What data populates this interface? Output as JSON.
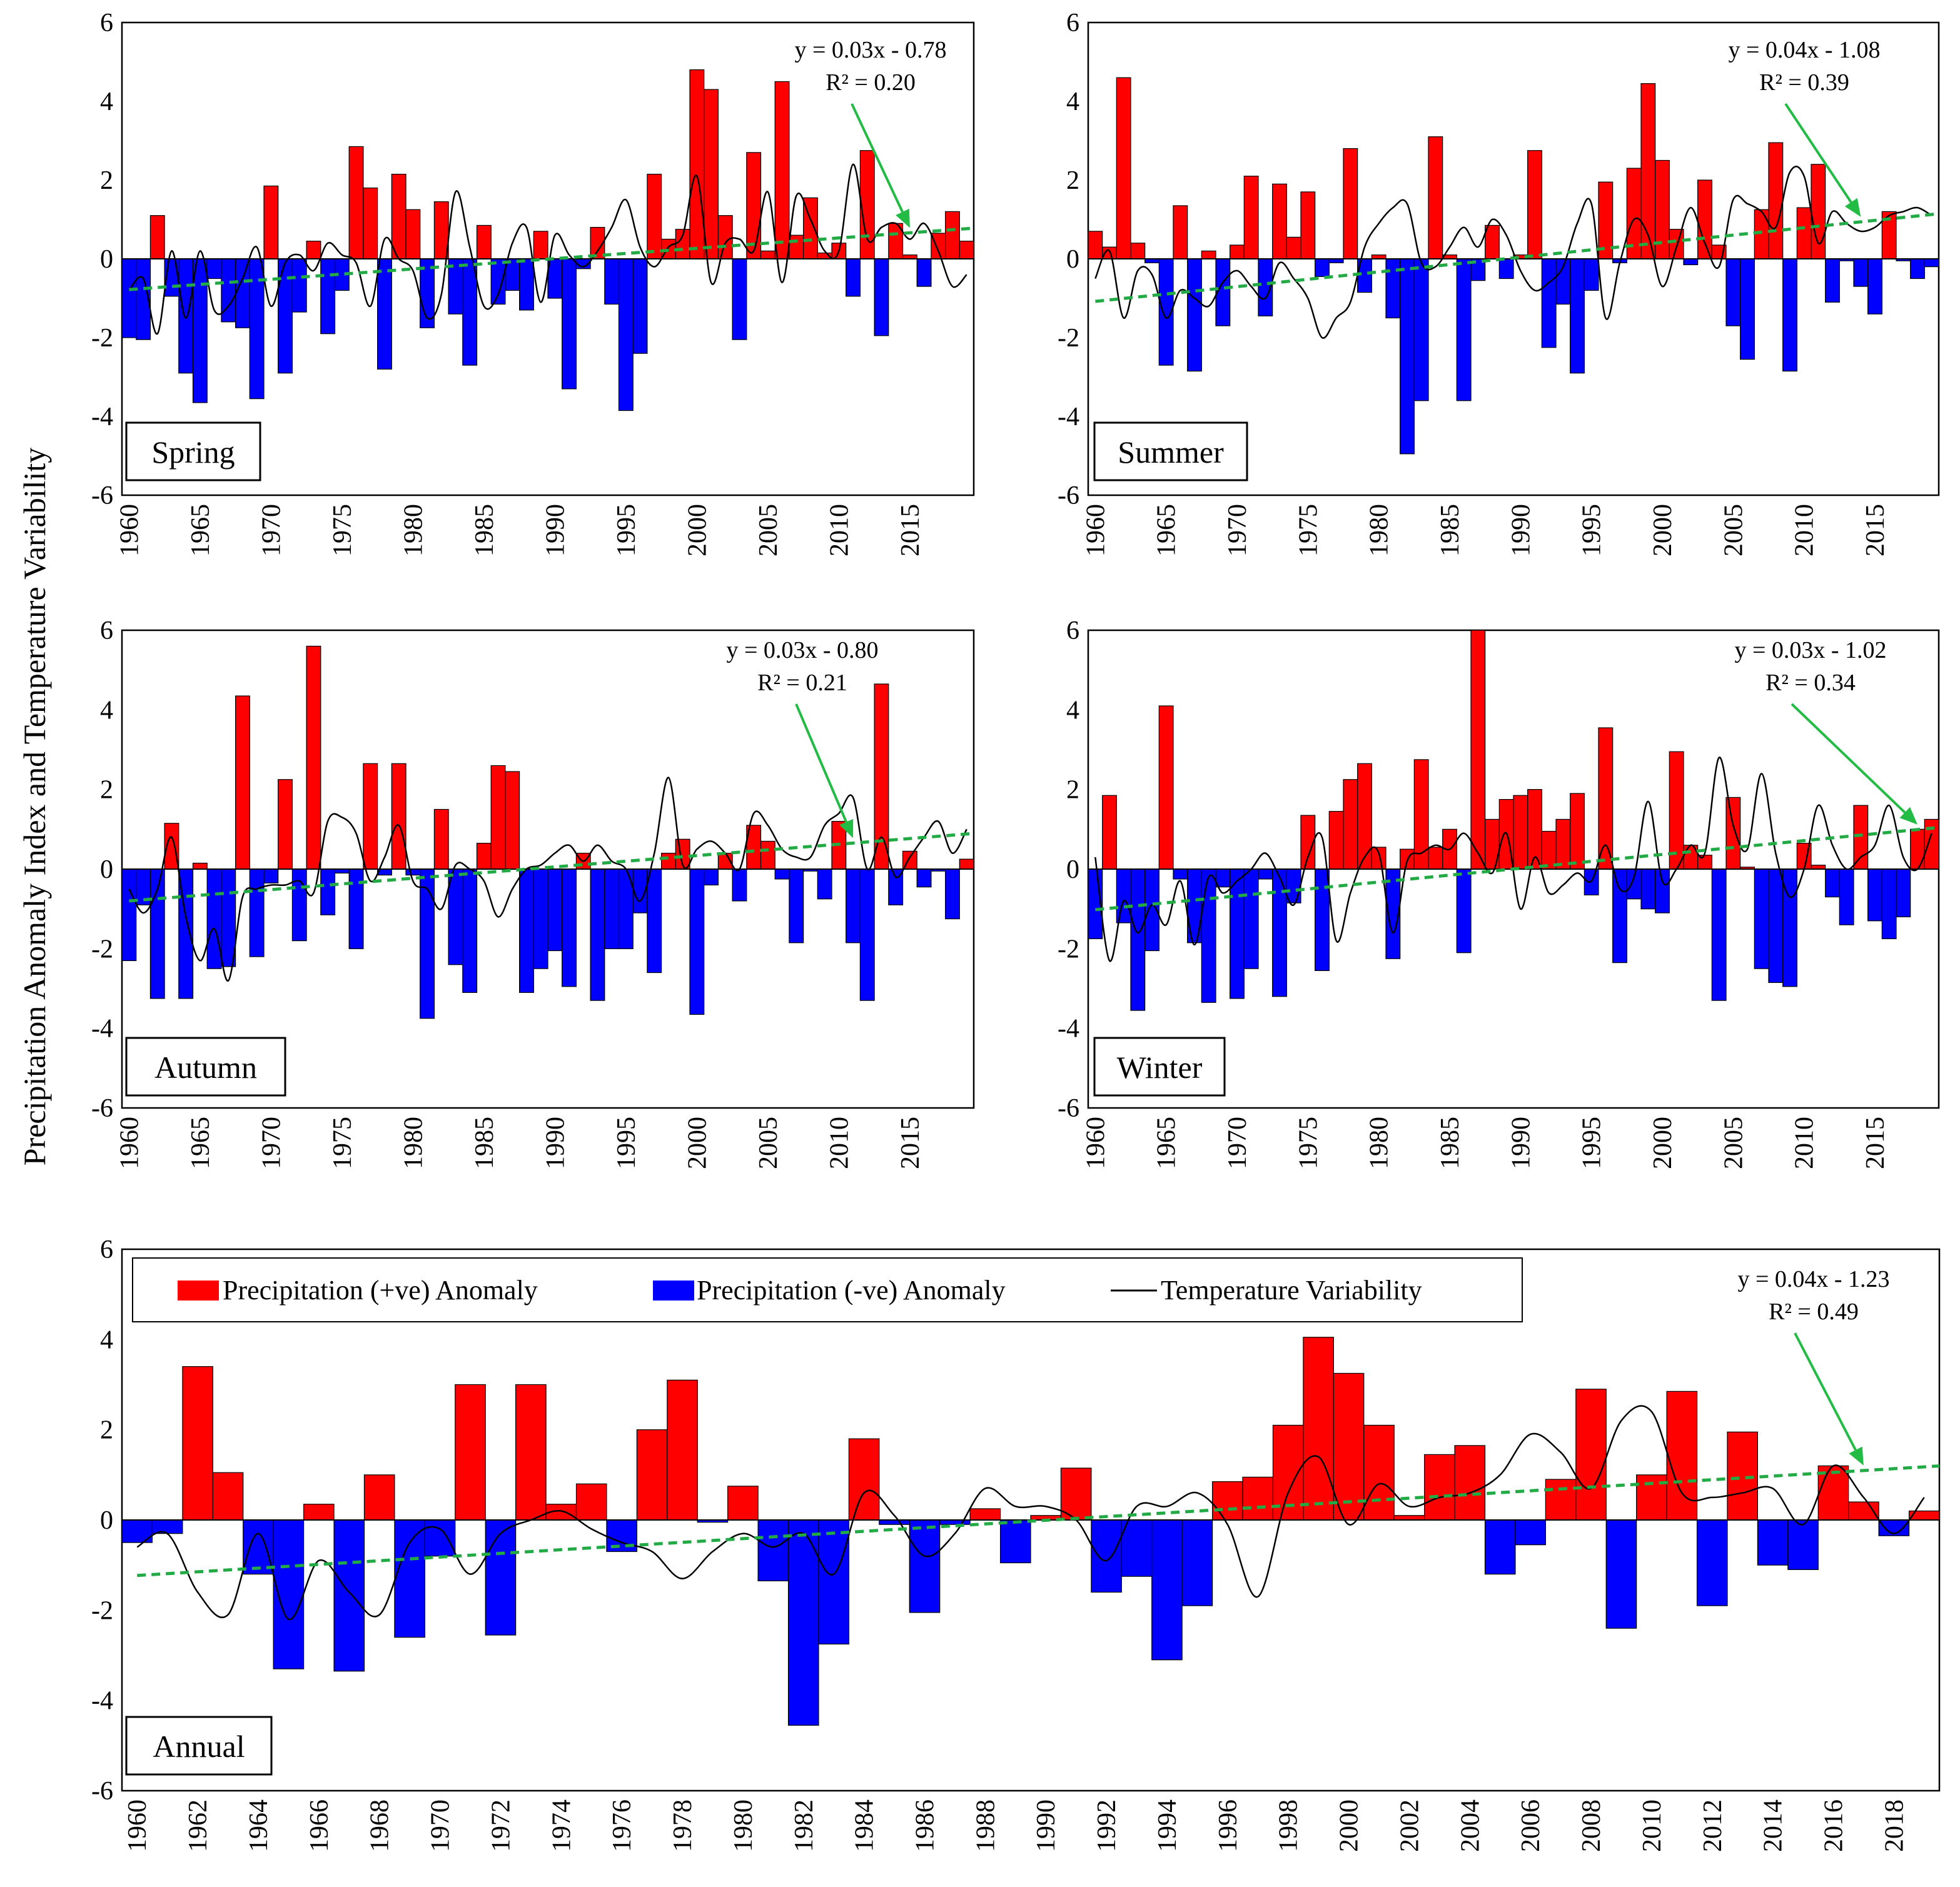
{
  "figure": {
    "ylabel": "Precipitation Anomaly Index and Temperature Variability",
    "colors": {
      "positive": "#ff0000",
      "negative": "#0000ff",
      "trend": "#22aa44",
      "arrow": "#22bb44",
      "temperature": "#000000"
    },
    "legend": {
      "pos_label": "Precipitation (+ve) Anomaly",
      "neg_label": "Precipitation (-ve) Anomaly",
      "temp_label": "Temperature Variability"
    }
  },
  "chart_data": [
    {
      "id": "spring",
      "type": "bar",
      "label": "Spring",
      "equation": "y = 0.03x - 0.78",
      "r2": "R² = 0.20",
      "ylim": [
        -6,
        6
      ],
      "yticks": [
        -6,
        -4,
        -2,
        0,
        2,
        4,
        6
      ],
      "xlim": [
        1959.5,
        2019.5
      ],
      "xticks": [
        "1960",
        "1965",
        "1970",
        "1975",
        "1980",
        "1985",
        "1990",
        "1995",
        "2000",
        "2005",
        "2010",
        "2015"
      ],
      "trend": {
        "slope": 0.0262,
        "start": -0.78
      },
      "arrow_year": 2015,
      "x": [
        1960,
        1961,
        1962,
        1963,
        1964,
        1965,
        1966,
        1967,
        1968,
        1969,
        1970,
        1971,
        1972,
        1973,
        1974,
        1975,
        1976,
        1977,
        1978,
        1979,
        1980,
        1981,
        1982,
        1983,
        1984,
        1985,
        1986,
        1987,
        1988,
        1989,
        1990,
        1991,
        1992,
        1993,
        1994,
        1995,
        1996,
        1997,
        1998,
        1999,
        2000,
        2001,
        2002,
        2003,
        2004,
        2005,
        2006,
        2007,
        2008,
        2009,
        2010,
        2011,
        2012,
        2013,
        2014,
        2015,
        2016,
        2017,
        2018,
        2019
      ],
      "values": [
        -2.0,
        -2.05,
        1.1,
        -0.95,
        -2.9,
        -3.65,
        -0.5,
        -1.6,
        -1.75,
        -3.55,
        1.85,
        -2.9,
        -1.35,
        0.45,
        -1.9,
        -0.8,
        2.85,
        1.8,
        -2.8,
        2.15,
        1.25,
        -1.75,
        1.45,
        -1.4,
        -2.7,
        0.85,
        -1.15,
        -0.8,
        -1.3,
        0.7,
        -1.0,
        -3.3,
        -0.25,
        0.8,
        -1.15,
        -3.85,
        -2.4,
        2.15,
        0.5,
        0.75,
        4.8,
        4.3,
        1.1,
        -2.05,
        2.7,
        0.2,
        4.5,
        0.6,
        1.55,
        0.15,
        0.4,
        -0.95,
        2.75,
        -1.95,
        0.9,
        0.1,
        -0.7,
        0.65,
        1.2,
        0.45
      ],
      "temperature": [
        -0.8,
        -0.5,
        -1.9,
        0.2,
        -1.5,
        0.2,
        -1.3,
        -1.2,
        -0.5,
        0.3,
        -1.2,
        -0.1,
        0.1,
        -0.3,
        0.4,
        0.1,
        -0.1,
        -1.2,
        0.5,
        0.0,
        -0.3,
        -1.5,
        -0.9,
        1.7,
        0.3,
        -1.2,
        -0.9,
        0.4,
        0.8,
        -1.1,
        0.6,
        0.1,
        -0.2,
        0.2,
        0.8,
        1.5,
        0.3,
        -0.2,
        0.3,
        0.6,
        2.1,
        -0.6,
        0.4,
        0.5,
        0.2,
        1.7,
        -0.6,
        1.6,
        1.0,
        0.2,
        0.2,
        2.4,
        0.5,
        0.8,
        0.9,
        0.5,
        0.9,
        0.2,
        -0.7,
        -0.4
      ]
    },
    {
      "id": "summer",
      "type": "bar",
      "label": "Summer",
      "equation": "y = 0.04x - 1.08",
      "r2": "R² = 0.39",
      "ylim": [
        -6,
        6
      ],
      "yticks": [
        -6,
        -4,
        -2,
        0,
        2,
        4,
        6
      ],
      "xlim": [
        1959.5,
        2019.5
      ],
      "xticks": [
        "1960",
        "1965",
        "1970",
        "1975",
        "1980",
        "1985",
        "1990",
        "1995",
        "2000",
        "2005",
        "2010",
        "2015"
      ],
      "trend": {
        "slope": 0.0374,
        "start": -1.08
      },
      "arrow_year": 2014,
      "x": [
        1960,
        1961,
        1962,
        1963,
        1964,
        1965,
        1966,
        1967,
        1968,
        1969,
        1970,
        1971,
        1972,
        1973,
        1974,
        1975,
        1976,
        1977,
        1978,
        1979,
        1980,
        1981,
        1982,
        1983,
        1984,
        1985,
        1986,
        1987,
        1988,
        1989,
        1990,
        1991,
        1992,
        1993,
        1994,
        1995,
        1996,
        1997,
        1998,
        1999,
        2000,
        2001,
        2002,
        2003,
        2004,
        2005,
        2006,
        2007,
        2008,
        2009,
        2010,
        2011,
        2012,
        2013,
        2014,
        2015,
        2016,
        2017,
        2018,
        2019
      ],
      "values": [
        0.7,
        0.3,
        4.6,
        0.4,
        -0.1,
        -2.7,
        1.35,
        -2.85,
        0.2,
        -1.7,
        0.35,
        2.1,
        -1.45,
        1.9,
        0.55,
        1.7,
        -0.45,
        -0.1,
        2.8,
        -0.85,
        0.1,
        -1.5,
        -4.95,
        -3.6,
        3.1,
        0.1,
        -3.6,
        -0.55,
        0.85,
        -0.5,
        0.1,
        2.75,
        -2.25,
        -1.15,
        -2.9,
        -0.8,
        1.95,
        -0.1,
        2.3,
        4.45,
        2.5,
        0.75,
        -0.15,
        2.0,
        0.35,
        -1.7,
        -2.55,
        1.25,
        2.95,
        -2.85,
        1.3,
        2.4,
        -1.1,
        -0.05,
        -0.7,
        -1.4,
        1.2,
        -0.05,
        -0.5,
        -0.2
      ],
      "temperature": [
        -0.5,
        0.2,
        -1.5,
        -0.3,
        -0.4,
        -1.5,
        -0.8,
        -1.0,
        -1.2,
        -0.6,
        -0.3,
        -0.7,
        -1.0,
        -0.1,
        -0.5,
        -1.0,
        -2.0,
        -1.5,
        -1.1,
        0.3,
        0.9,
        1.3,
        1.4,
        -0.1,
        -0.2,
        0.3,
        0.8,
        0.3,
        1.0,
        0.6,
        -0.3,
        -0.8,
        -0.6,
        -0.2,
        0.9,
        1.4,
        -1.5,
        -0.1,
        1.0,
        0.6,
        -0.7,
        0.3,
        1.3,
        0.4,
        -0.2,
        1.5,
        1.4,
        1.2,
        0.8,
        2.2,
        2.1,
        0.4,
        1.2,
        0.9,
        0.7,
        0.8,
        1.1,
        1.2,
        1.3,
        1.1
      ]
    },
    {
      "id": "autumn",
      "type": "bar",
      "label": "Autumn",
      "equation": "y = 0.03x - 0.80",
      "r2": "R² = 0.21",
      "ylim": [
        -6,
        6
      ],
      "yticks": [
        -6,
        -4,
        -2,
        0,
        2,
        4,
        6
      ],
      "xlim": [
        1959.5,
        2019.5
      ],
      "xticks": [
        "1960",
        "1965",
        "1970",
        "1975",
        "1980",
        "1985",
        "1990",
        "1995",
        "2000",
        "2005",
        "2010",
        "2015"
      ],
      "trend": {
        "slope": 0.0285,
        "start": -0.8
      },
      "arrow_year": 2011,
      "x": [
        1960,
        1961,
        1962,
        1963,
        1964,
        1965,
        1966,
        1967,
        1968,
        1969,
        1970,
        1971,
        1972,
        1973,
        1974,
        1975,
        1976,
        1977,
        1978,
        1979,
        1980,
        1981,
        1982,
        1983,
        1984,
        1985,
        1986,
        1987,
        1988,
        1989,
        1990,
        1991,
        1992,
        1993,
        1994,
        1995,
        1996,
        1997,
        1998,
        1999,
        2000,
        2001,
        2002,
        2003,
        2004,
        2005,
        2006,
        2007,
        2008,
        2009,
        2010,
        2011,
        2012,
        2013,
        2014,
        2015,
        2016,
        2017,
        2018,
        2019
      ],
      "values": [
        -2.3,
        -0.9,
        -3.25,
        1.15,
        -3.25,
        0.15,
        -2.5,
        -2.45,
        4.35,
        -2.2,
        -0.35,
        2.25,
        -1.8,
        5.6,
        -1.15,
        -0.1,
        -2.0,
        2.65,
        -0.15,
        2.65,
        -0.15,
        -3.75,
        1.5,
        -2.4,
        -3.1,
        0.65,
        2.6,
        2.45,
        -3.1,
        -2.5,
        -2.05,
        -2.95,
        0.4,
        -3.3,
        -2.0,
        -2.0,
        -1.1,
        -2.6,
        0.4,
        0.75,
        -3.65,
        -0.4,
        0.4,
        -0.8,
        1.1,
        0.7,
        -0.25,
        -1.85,
        -0.05,
        -0.75,
        1.2,
        -1.85,
        -3.3,
        4.65,
        -0.9,
        0.45,
        -0.45,
        -0.05,
        -1.25,
        0.25
      ],
      "temperature": [
        -0.5,
        -1.1,
        -0.5,
        0.8,
        -1.2,
        -2.3,
        -1.5,
        -2.8,
        -0.7,
        -0.5,
        -0.4,
        -0.4,
        -0.3,
        -0.6,
        1.2,
        1.3,
        0.9,
        -0.3,
        0.3,
        1.1,
        -0.3,
        -0.5,
        -1.0,
        0.1,
        0.0,
        -0.3,
        -1.2,
        -0.5,
        0.0,
        0.1,
        0.4,
        0.6,
        0.2,
        0.6,
        0.2,
        0.0,
        -0.8,
        0.4,
        2.3,
        0.1,
        0.5,
        0.7,
        0.4,
        0.0,
        1.4,
        1.1,
        0.5,
        0.3,
        0.3,
        1.1,
        1.4,
        1.8,
        0.0,
        0.8,
        -0.2,
        0.3,
        0.8,
        1.2,
        0.4,
        1.0
      ]
    },
    {
      "id": "winter",
      "type": "bar",
      "label": "Winter",
      "equation": "y = 0.03x - 1.02",
      "r2": "R² = 0.34",
      "ylim": [
        -6,
        6
      ],
      "yticks": [
        -6,
        -4,
        -2,
        0,
        2,
        4,
        6
      ],
      "xlim": [
        1959.5,
        2019.5
      ],
      "xticks": [
        "1960",
        "1965",
        "1970",
        "1975",
        "1980",
        "1985",
        "1990",
        "1995",
        "2000",
        "2005",
        "2010",
        "2015"
      ],
      "trend": {
        "slope": 0.0347,
        "start": -1.02
      },
      "arrow_year": 2018,
      "x": [
        1960,
        1961,
        1962,
        1963,
        1964,
        1965,
        1966,
        1967,
        1968,
        1969,
        1970,
        1971,
        1972,
        1973,
        1974,
        1975,
        1976,
        1977,
        1978,
        1979,
        1980,
        1981,
        1982,
        1983,
        1984,
        1985,
        1986,
        1987,
        1988,
        1989,
        1990,
        1991,
        1992,
        1993,
        1994,
        1995,
        1996,
        1997,
        1998,
        1999,
        2000,
        2001,
        2002,
        2003,
        2004,
        2005,
        2006,
        2007,
        2008,
        2009,
        2010,
        2011,
        2012,
        2013,
        2014,
        2015,
        2016,
        2017,
        2018,
        2019
      ],
      "values": [
        -1.75,
        1.85,
        -1.35,
        -3.55,
        -2.05,
        4.1,
        -0.25,
        -1.85,
        -3.35,
        -0.45,
        -3.25,
        -2.5,
        -0.25,
        -3.2,
        -0.85,
        1.35,
        -2.55,
        1.45,
        2.25,
        2.65,
        0.55,
        -2.25,
        0.5,
        2.75,
        0.55,
        1.0,
        -2.1,
        6.0,
        1.25,
        1.75,
        1.85,
        2.0,
        0.95,
        1.25,
        1.9,
        -0.65,
        3.55,
        -2.35,
        -0.75,
        -1.0,
        -1.1,
        2.95,
        0.6,
        0.35,
        -3.3,
        1.8,
        0.05,
        -2.5,
        -2.85,
        -2.95,
        0.65,
        0.1,
        -0.7,
        -1.4,
        1.6,
        -1.3,
        -1.75,
        -1.2,
        1.0,
        1.25
      ],
      "temperature": [
        0.3,
        -2.3,
        -0.8,
        -1.6,
        -0.9,
        -1.4,
        -0.3,
        -1.9,
        -0.2,
        -0.6,
        -0.3,
        0.0,
        0.4,
        -0.2,
        -0.9,
        0.3,
        0.8,
        -1.8,
        -0.6,
        0.3,
        0.4,
        -1.6,
        0.2,
        0.4,
        0.6,
        0.5,
        0.9,
        0.4,
        -0.1,
        0.9,
        -1.0,
        0.3,
        -0.6,
        -0.4,
        -0.1,
        -0.3,
        0.6,
        -0.5,
        -0.2,
        1.7,
        -0.3,
        0.0,
        0.6,
        0.4,
        2.8,
        1.1,
        0.5,
        2.4,
        0.4,
        -0.7,
        0.0,
        1.6,
        0.6,
        0.0,
        0.3,
        0.6,
        1.6,
        0.3,
        0.0,
        0.9
      ]
    },
    {
      "id": "annual",
      "type": "bar",
      "label": "Annual",
      "equation": "y = 0.04x - 1.23",
      "r2": "R² = 0.49",
      "ylim": [
        -6,
        6
      ],
      "yticks": [
        -6,
        -4,
        -2,
        0,
        2,
        4,
        6
      ],
      "xlim": [
        1959.5,
        2019.5
      ],
      "xticks": [
        "1960",
        "1962",
        "1964",
        "1966",
        "1968",
        "1970",
        "1972",
        "1974",
        "1976",
        "1978",
        "1980",
        "1982",
        "1984",
        "1986",
        "1988",
        "1990",
        "1992",
        "1994",
        "1996",
        "1998",
        "2000",
        "2002",
        "2004",
        "2006",
        "2008",
        "2010",
        "2012",
        "2014",
        "2016",
        "2018"
      ],
      "trend": {
        "slope": 0.0408,
        "start": -1.23
      },
      "arrow_year": 2017,
      "x": [
        1960,
        1961,
        1962,
        1963,
        1964,
        1965,
        1966,
        1967,
        1968,
        1969,
        1970,
        1971,
        1972,
        1973,
        1974,
        1975,
        1976,
        1977,
        1978,
        1979,
        1980,
        1981,
        1982,
        1983,
        1984,
        1985,
        1986,
        1987,
        1988,
        1989,
        1990,
        1991,
        1992,
        1993,
        1994,
        1995,
        1996,
        1997,
        1998,
        1999,
        2000,
        2001,
        2002,
        2003,
        2004,
        2005,
        2006,
        2007,
        2008,
        2009,
        2010,
        2011,
        2012,
        2013,
        2014,
        2015,
        2016,
        2017,
        2018,
        2019
      ],
      "values": [
        -0.5,
        -0.3,
        3.4,
        1.05,
        -1.2,
        -3.3,
        0.35,
        -3.35,
        1.0,
        -2.6,
        -0.8,
        3.0,
        -2.55,
        3.0,
        0.35,
        0.8,
        -0.7,
        2.0,
        3.1,
        -0.05,
        0.75,
        -1.35,
        -4.55,
        -2.75,
        1.8,
        -0.1,
        -2.05,
        -0.1,
        0.25,
        -0.95,
        0.1,
        1.15,
        -1.6,
        -1.25,
        -3.1,
        -1.9,
        0.85,
        0.95,
        2.1,
        4.05,
        3.25,
        2.1,
        0.1,
        1.45,
        1.65,
        -1.2,
        -0.55,
        0.9,
        2.9,
        -2.4,
        1.0,
        2.85,
        -1.9,
        1.95,
        -1.0,
        -1.1,
        1.2,
        0.4,
        -0.35,
        0.2
      ],
      "temperature": [
        -0.6,
        -0.3,
        -1.6,
        -2.1,
        -0.3,
        -2.2,
        -0.9,
        -1.6,
        -2.1,
        -0.5,
        -0.2,
        -1.2,
        -0.3,
        0.0,
        0.2,
        -0.2,
        -0.5,
        -0.7,
        -1.3,
        -0.7,
        -0.3,
        -0.6,
        -0.3,
        -1.2,
        0.6,
        0.1,
        -0.8,
        -0.3,
        0.7,
        0.3,
        0.3,
        0.0,
        -0.9,
        0.3,
        0.3,
        0.6,
        -0.1,
        -1.7,
        0.6,
        1.4,
        -0.1,
        0.8,
        0.3,
        0.5,
        0.6,
        1.0,
        1.9,
        1.5,
        0.7,
        2.2,
        2.4,
        0.6,
        0.5,
        0.6,
        0.7,
        -0.1,
        1.2,
        0.5,
        -0.3,
        0.5
      ]
    }
  ]
}
